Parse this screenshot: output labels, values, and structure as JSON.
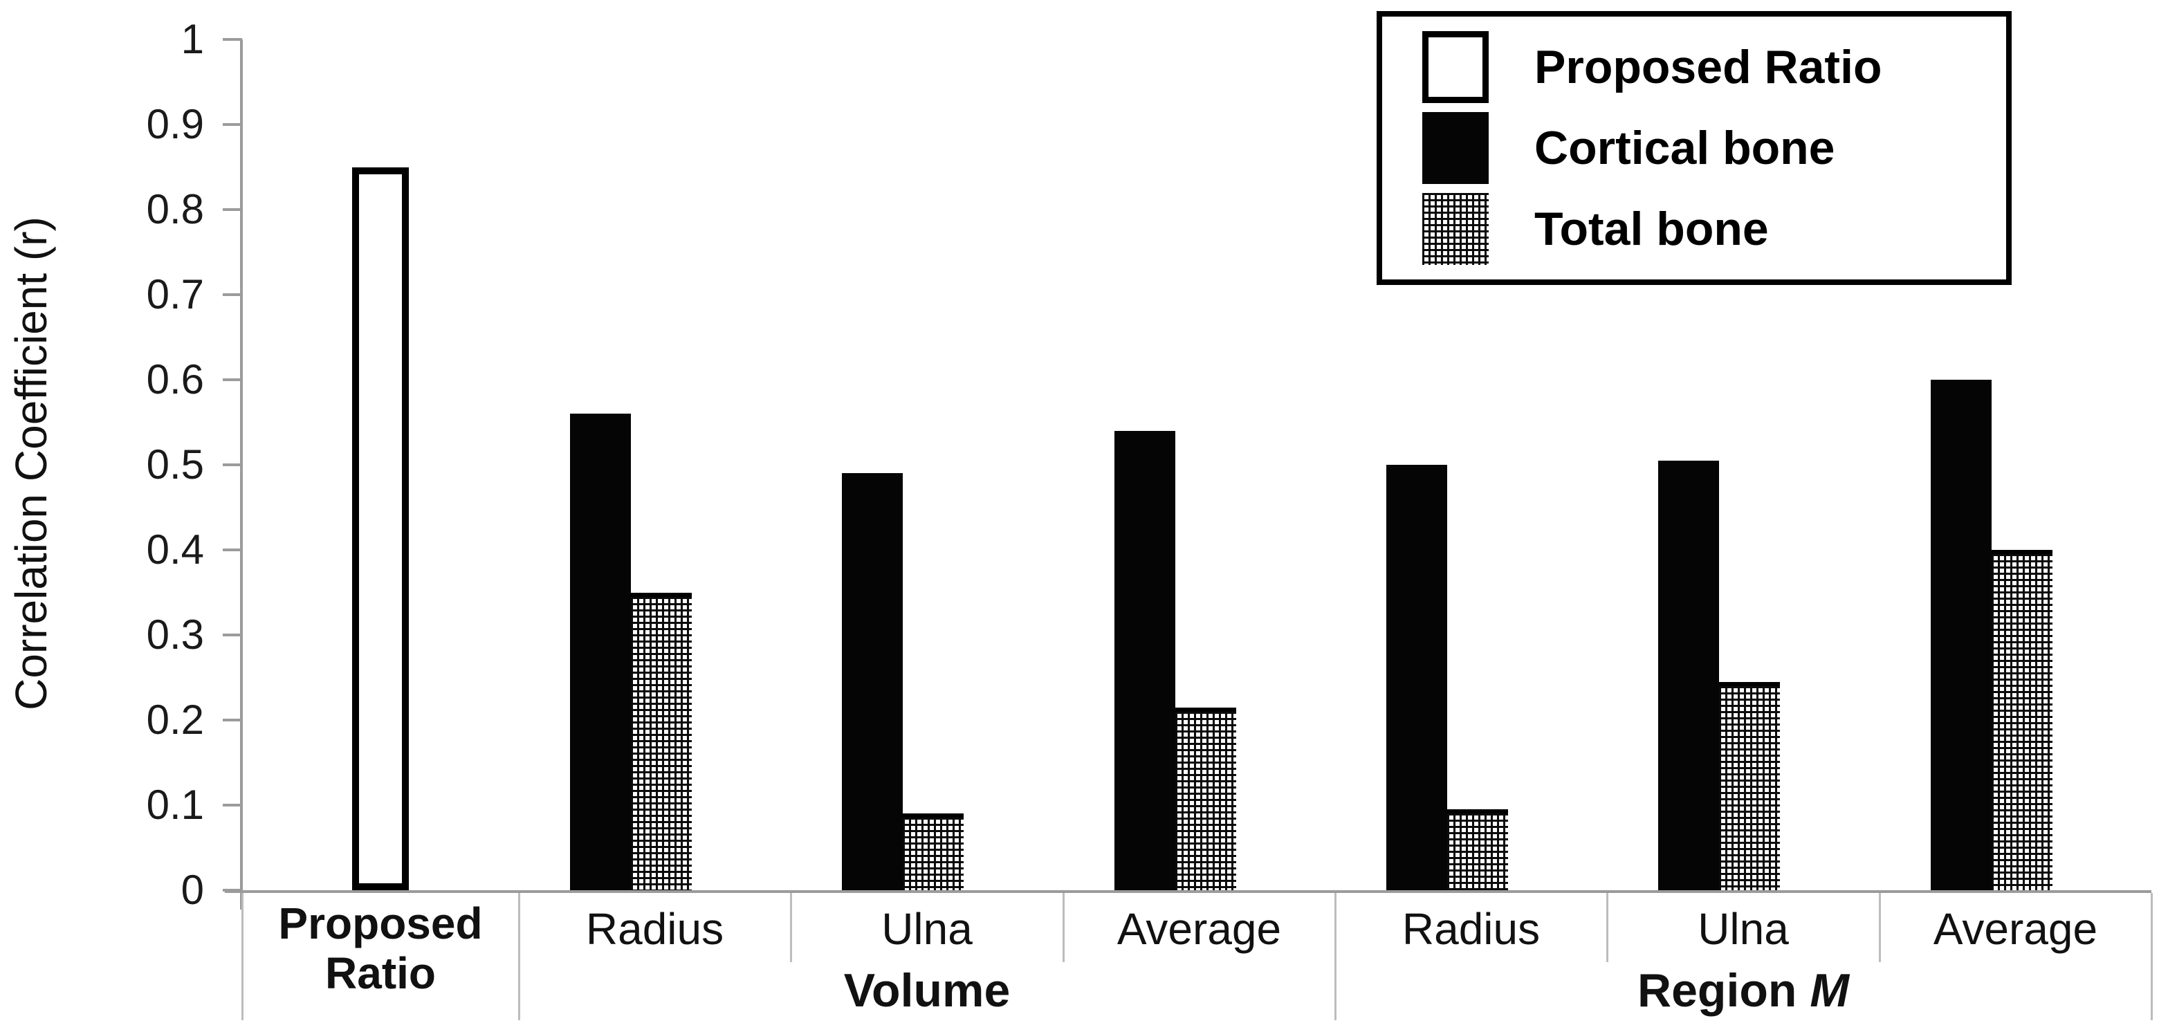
{
  "figure": {
    "background": "#ffffff",
    "bar_color": "#000000",
    "axis_color": "#9b9b9b",
    "separator_color": "#bdbdbd"
  },
  "chart_data": {
    "type": "bar",
    "title": "",
    "xlabel": "",
    "ylabel": "Correlation Coefficient (r)",
    "ylim": [
      0,
      1
    ],
    "ytick_step": 0.1,
    "ytick_labels": [
      "1",
      "0.9",
      "0.8",
      "0.7",
      "0.6",
      "0.5",
      "0.4",
      "0.3",
      "0.2",
      "0.1",
      "0"
    ],
    "grid": false,
    "legend_position": "top-right",
    "legend": [
      {
        "name": "Proposed Ratio",
        "pattern": "white-outline"
      },
      {
        "name": "Cortical bone",
        "pattern": "solid-black"
      },
      {
        "name": "Total bone",
        "pattern": "crosshatch"
      }
    ],
    "groups": [
      {
        "category": "Proposed Ratio",
        "section": "",
        "bold_label": true,
        "bars": [
          {
            "series": "Proposed Ratio",
            "value": 0.85
          }
        ]
      },
      {
        "category": "Radius",
        "section": "Volume",
        "bold_label": false,
        "bars": [
          {
            "series": "Cortical bone",
            "value": 0.56
          },
          {
            "series": "Total bone",
            "value": 0.35
          }
        ]
      },
      {
        "category": "Ulna",
        "section": "Volume",
        "bold_label": false,
        "bars": [
          {
            "series": "Cortical bone",
            "value": 0.49
          },
          {
            "series": "Total bone",
            "value": 0.09
          }
        ]
      },
      {
        "category": "Average",
        "section": "Volume",
        "bold_label": false,
        "bars": [
          {
            "series": "Cortical bone",
            "value": 0.54
          },
          {
            "series": "Total bone",
            "value": 0.215
          }
        ]
      },
      {
        "category": "Radius",
        "section": "Region M",
        "bold_label": false,
        "bars": [
          {
            "series": "Cortical bone",
            "value": 0.5
          },
          {
            "series": "Total bone",
            "value": 0.095
          }
        ]
      },
      {
        "category": "Ulna",
        "section": "Region M",
        "bold_label": false,
        "bars": [
          {
            "series": "Cortical bone",
            "value": 0.505
          },
          {
            "series": "Total bone",
            "value": 0.245
          }
        ]
      },
      {
        "category": "Average",
        "section": "Region M",
        "bold_label": false,
        "bars": [
          {
            "series": "Cortical bone",
            "value": 0.6
          },
          {
            "series": "Total bone",
            "value": 0.4
          }
        ]
      }
    ],
    "sections": [
      {
        "label_regular": "Volume",
        "label_italic": "",
        "first_group": 1,
        "last_group": 3
      },
      {
        "label_regular": "Region",
        "label_italic": "M",
        "first_group": 4,
        "last_group": 6
      }
    ]
  }
}
